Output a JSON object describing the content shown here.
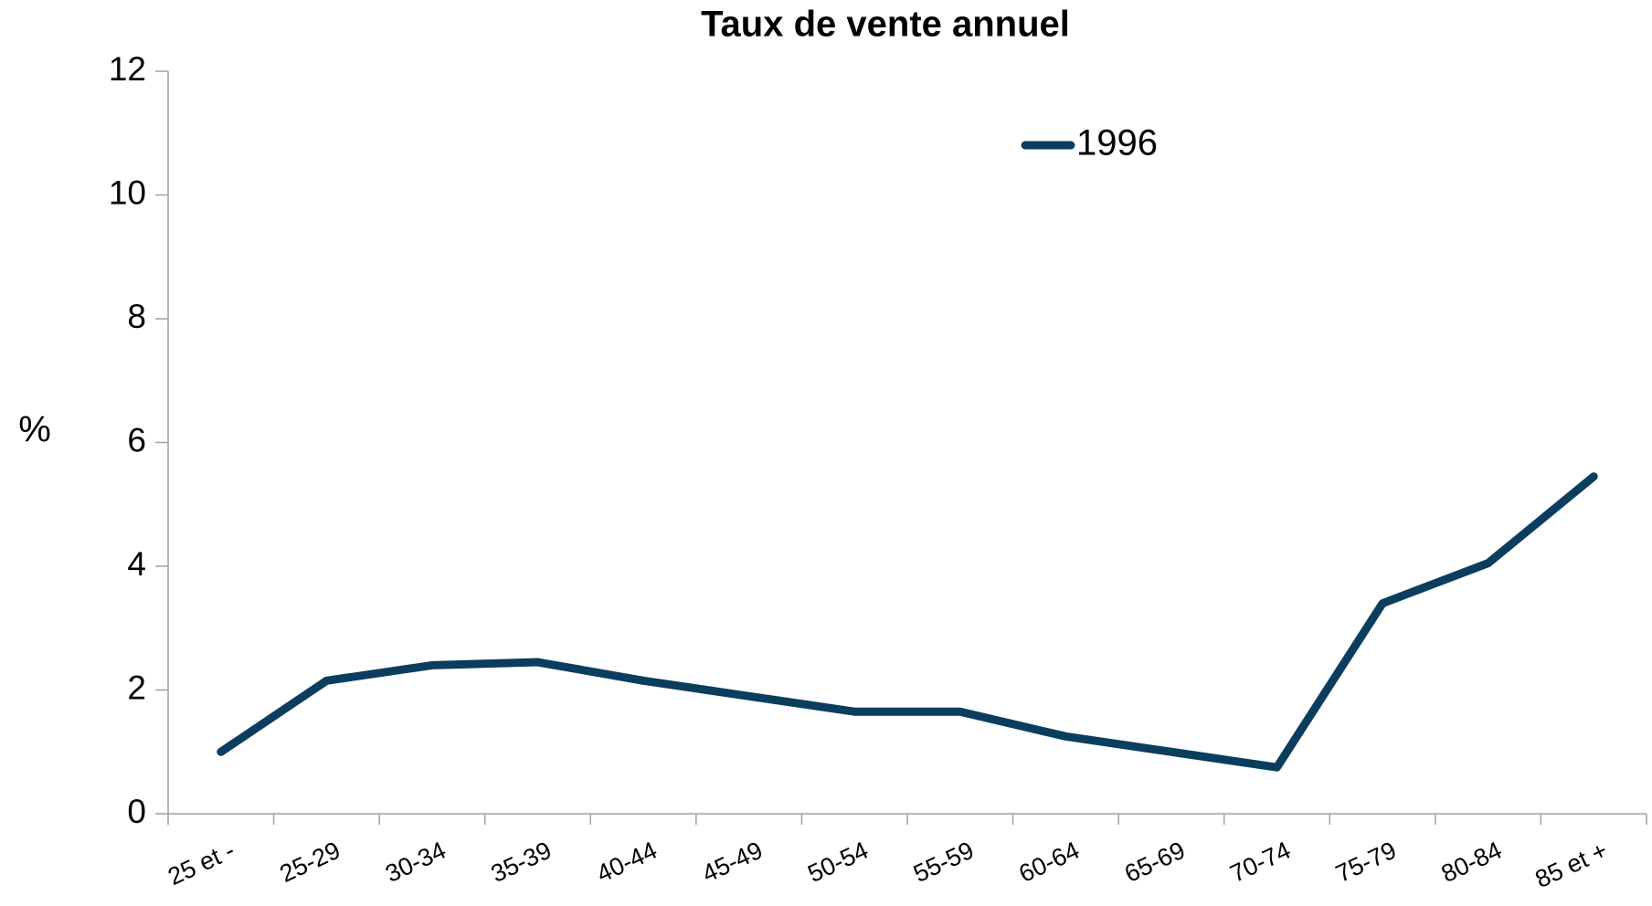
{
  "chart_data": {
    "type": "line",
    "title": "Taux de vente annuel",
    "y_label": "%",
    "categories": [
      "25 et -",
      "25-29",
      "30-34",
      "35-39",
      "40-44",
      "45-49",
      "50-54",
      "55-59",
      "60-64",
      "65-69",
      "70-74",
      "75-79",
      "80-84",
      "85 et +"
    ],
    "series": [
      {
        "name": "1996",
        "color": "#0b3d5e",
        "values": [
          1.0,
          2.15,
          2.4,
          2.45,
          2.15,
          1.9,
          1.65,
          1.65,
          1.25,
          1.0,
          0.75,
          3.4,
          4.05,
          5.45
        ]
      }
    ],
    "ylim": [
      0,
      12
    ],
    "yticks": [
      0,
      2,
      4,
      6,
      8,
      10,
      12
    ],
    "grid": false,
    "legend": "top"
  }
}
